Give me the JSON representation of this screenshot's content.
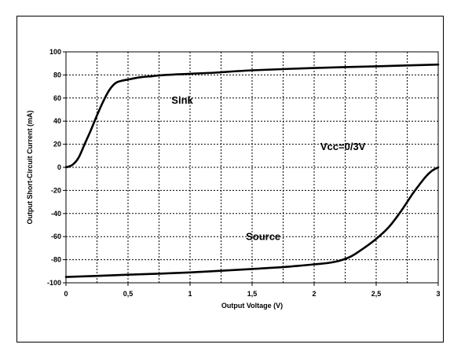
{
  "chart_data": {
    "type": "line",
    "title": "",
    "xlabel": "Output Voltage (V)",
    "ylabel": "Output Short-Circuit Current (mA)",
    "xlim": [
      0,
      3
    ],
    "ylim": [
      -100,
      100
    ],
    "x_ticks": [
      0,
      0.5,
      1,
      1.5,
      2,
      2.5,
      3
    ],
    "x_tick_labels": [
      "0",
      "0,5",
      "1",
      "1,5",
      "2",
      "2,5",
      "3"
    ],
    "y_ticks": [
      -100,
      -80,
      -60,
      -40,
      -20,
      0,
      20,
      40,
      60,
      80,
      100
    ],
    "y_tick_labels": [
      "-100",
      "-80",
      "-60",
      "-40",
      "-20",
      "0",
      "20",
      "40",
      "60",
      "80",
      "100"
    ],
    "grid": true,
    "series": [
      {
        "name": "Sink",
        "x": [
          0,
          0.05,
          0.1,
          0.15,
          0.2,
          0.25,
          0.3,
          0.35,
          0.4,
          0.45,
          0.5,
          0.6,
          0.7,
          0.8,
          1.0,
          1.2,
          1.5,
          2.0,
          2.5,
          3.0
        ],
        "y": [
          0,
          2,
          8,
          20,
          32,
          45,
          57,
          67,
          73,
          75,
          76,
          78,
          79,
          80,
          81,
          82,
          84,
          86,
          87.5,
          89
        ]
      },
      {
        "name": "Source",
        "x": [
          0,
          0.5,
          1.0,
          1.5,
          1.8,
          2.0,
          2.1,
          2.2,
          2.3,
          2.4,
          2.5,
          2.6,
          2.7,
          2.8,
          2.9,
          2.95,
          3.0
        ],
        "y": [
          -95,
          -93,
          -91,
          -88,
          -86,
          -84,
          -83,
          -81,
          -77,
          -70,
          -62,
          -52,
          -38,
          -22,
          -8,
          -3,
          0
        ]
      }
    ],
    "annotations": [
      {
        "text": "Sink",
        "x": 0.85,
        "y": 55
      },
      {
        "text": "Vcc=0/3V",
        "x": 2.05,
        "y": 15
      },
      {
        "text": "Source",
        "x": 1.45,
        "y": -63
      }
    ]
  }
}
